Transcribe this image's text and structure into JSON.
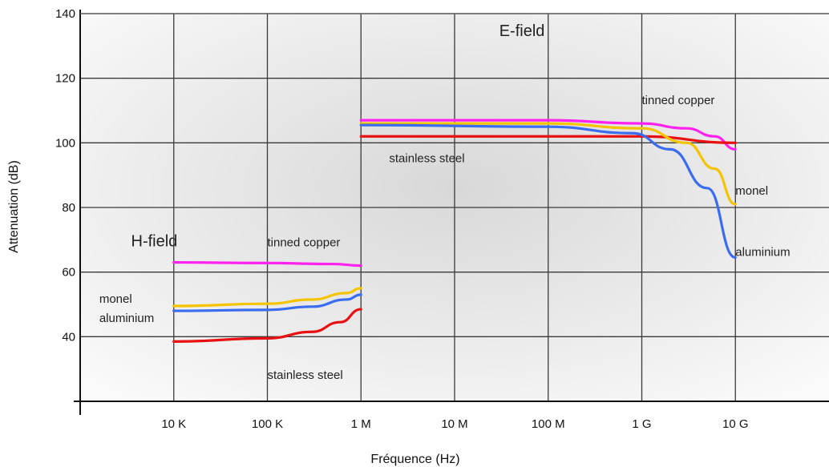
{
  "chart_data": {
    "type": "line",
    "title": "",
    "xlabel": "Fréquence (Hz)",
    "ylabel": "Attenuation (dB)",
    "x_scale": "log",
    "x_ticks": [
      {
        "value": 10000,
        "label": "10 K"
      },
      {
        "value": 100000,
        "label": "100 K"
      },
      {
        "value": 1000000,
        "label": "1 M"
      },
      {
        "value": 10000000,
        "label": "10 M"
      },
      {
        "value": 100000000,
        "label": "100 M"
      },
      {
        "value": 1000000000,
        "label": "1 G"
      },
      {
        "value": 10000000000,
        "label": "10 G"
      }
    ],
    "y_ticks": [
      {
        "value": 40,
        "label": "40"
      },
      {
        "value": 60,
        "label": "60"
      },
      {
        "value": 80,
        "label": "80"
      },
      {
        "value": 100,
        "label": "100"
      },
      {
        "value": 120,
        "label": "120"
      },
      {
        "value": 140,
        "label": "140"
      }
    ],
    "ylim": [
      20,
      140
    ],
    "xlim": [
      1000,
      100000000000
    ],
    "grid": true,
    "series": [
      {
        "color": "#ff22ee",
        "x": [
          10000,
          100000,
          500000,
          1000000
        ],
        "y": [
          63,
          62.8,
          62.5,
          62
        ]
      },
      {
        "color": "#f5c400",
        "x": [
          10000,
          100000,
          300000,
          700000,
          1000000
        ],
        "y": [
          49.5,
          50.2,
          51.5,
          53.5,
          55
        ]
      },
      {
        "color": "#3a6cf0",
        "x": [
          10000,
          100000,
          300000,
          700000,
          1000000
        ],
        "y": [
          48,
          48.3,
          49.3,
          51.5,
          53
        ]
      },
      {
        "color": "#e81010",
        "x": [
          10000,
          100000,
          300000,
          600000,
          1000000
        ],
        "y": [
          38.5,
          39.5,
          41.5,
          44.5,
          48.5
        ]
      },
      {
        "color": "#ff22ee",
        "x": [
          1000000,
          100000000,
          1000000000,
          3000000000,
          6000000000,
          10000000000
        ],
        "y": [
          107,
          107,
          106,
          104.5,
          102,
          98
        ]
      },
      {
        "color": "#e81010",
        "x": [
          1000000,
          100000000,
          1000000000,
          10000000000
        ],
        "y": [
          102,
          102,
          102,
          100
        ]
      },
      {
        "color": "#f5c400",
        "x": [
          1000000,
          100000000,
          1000000000,
          3000000000,
          6000000000,
          10000000000
        ],
        "y": [
          106,
          106,
          104.5,
          100,
          92,
          81
        ]
      },
      {
        "color": "#3a6cf0",
        "x": [
          1000000,
          100000000,
          800000000,
          2000000000,
          5000000000,
          10000000000
        ],
        "y": [
          105.5,
          105,
          103,
          98,
          86,
          64.5
        ]
      }
    ],
    "annotations": [
      {
        "text": "E-field",
        "x": 30000000,
        "y": 133,
        "size": "large"
      },
      {
        "text": "H-field",
        "x": 3500,
        "y": 68,
        "size": "large"
      },
      {
        "text": "tinned copper",
        "x": 1000000000,
        "y": 112,
        "size": "normal"
      },
      {
        "text": "stainless steel",
        "x": 2000000,
        "y": 94,
        "size": "normal"
      },
      {
        "text": "monel",
        "x": 10000000000,
        "y": 84,
        "size": "normal"
      },
      {
        "text": "aluminium",
        "x": 10000000000,
        "y": 65,
        "size": "normal"
      },
      {
        "text": "tinned copper",
        "x": 100000,
        "y": 68,
        "size": "normal"
      },
      {
        "text": "monel",
        "x": 1600,
        "y": 50.5,
        "size": "normal"
      },
      {
        "text": "aluminium",
        "x": 1600,
        "y": 44.5,
        "size": "normal"
      },
      {
        "text": "stainless steel",
        "x": 100000,
        "y": 27,
        "size": "normal"
      }
    ]
  }
}
